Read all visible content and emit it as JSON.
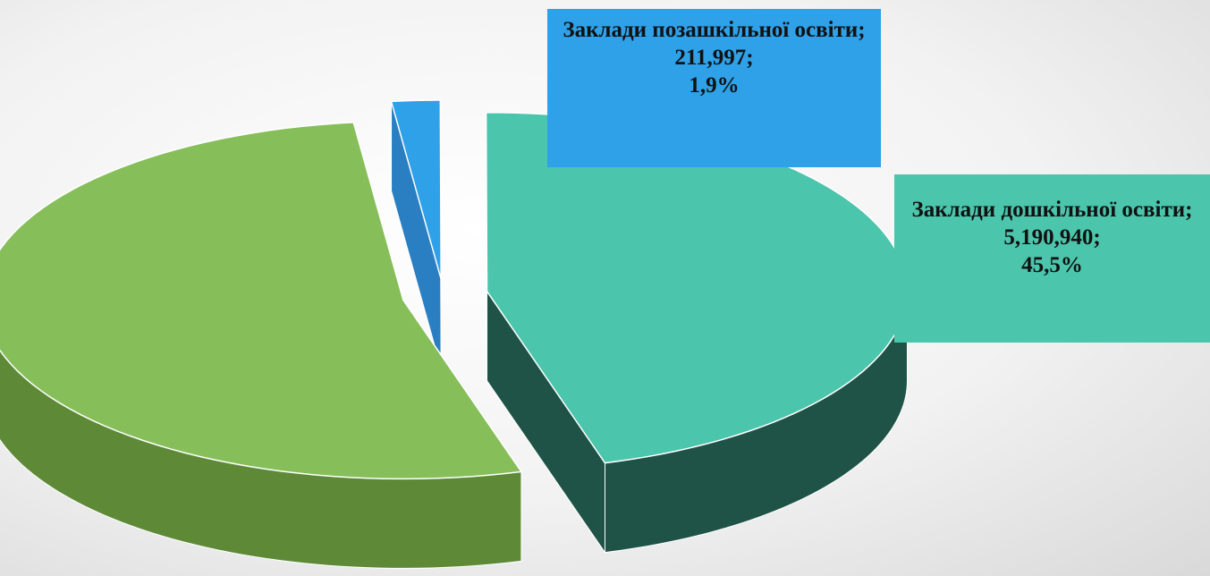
{
  "chart_data": {
    "type": "pie3d",
    "categories": [
      "Заклади позашкільної освіти;",
      "Заклади дошкільної освіти;",
      null
    ],
    "values": [
      211997,
      5190940,
      6005722
    ],
    "value_labels": [
      "211,997;",
      "5,190,940;",
      null
    ],
    "percents": [
      1.9,
      45.5,
      52.6
    ],
    "percent_labels": [
      "1,9%",
      "45,5%",
      null
    ],
    "colors": [
      "#2fa1e8",
      "#4bc5ac",
      "#86bf5a"
    ],
    "side_colors": [
      "#2a7fc2",
      "#1f5347",
      "#5e8a38"
    ]
  }
}
